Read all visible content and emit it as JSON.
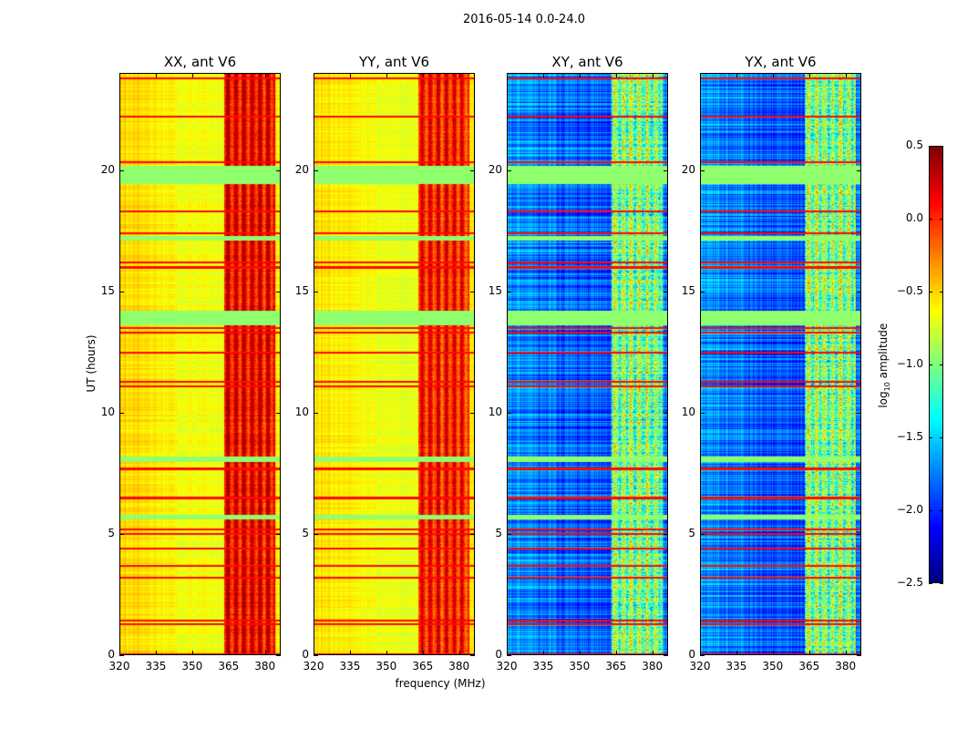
{
  "chart_data": {
    "type": "heatmap",
    "title": "2016-05-14 0.0-24.0",
    "xlabel": "frequency (MHz)",
    "ylabel": "UT (hours)",
    "xlim": [
      320,
      386.5
    ],
    "ylim": [
      0,
      24
    ],
    "xticks": [
      320,
      335,
      350,
      365,
      380
    ],
    "yticks": [
      0,
      5,
      10,
      15,
      20
    ],
    "colorbar": {
      "label_main": "log",
      "label_sub": "10",
      "label_rest": " amplitude",
      "range": [
        -2.5,
        0.5
      ],
      "ticks": [
        "0.5",
        "0.0",
        "−0.5",
        "−1.0",
        "−1.5",
        "−2.0",
        "−2.5"
      ],
      "tick_values": [
        0.5,
        0.0,
        -0.5,
        -1.0,
        -1.5,
        -2.0,
        -2.5
      ],
      "colormap": "jet"
    },
    "panels": [
      {
        "title": "XX, ant V6",
        "base_level": -0.6,
        "band_level": 0.15,
        "band_columns": [
          363,
          384
        ]
      },
      {
        "title": "YY, ant V6",
        "base_level": -0.62,
        "band_level": 0.05,
        "band_columns": [
          363,
          384
        ]
      },
      {
        "title": "XY, ant V6",
        "base_level": -1.8,
        "band_level": -1.0,
        "band_columns": [
          363,
          384
        ]
      },
      {
        "title": "YX, ant V6",
        "base_level": -1.8,
        "band_level": -1.0,
        "band_columns": [
          363,
          384
        ]
      }
    ],
    "flagged_time_ranges_hours": [
      [
        19.45,
        20.2
      ],
      [
        8.0,
        8.2
      ],
      [
        5.6,
        5.8
      ],
      [
        13.6,
        14.2
      ],
      [
        17.1,
        17.3
      ]
    ],
    "flag_level": -0.95,
    "bright_line_times_hours": [
      0.05,
      1.3,
      1.45,
      3.2,
      3.7,
      4.4,
      5.0,
      5.2,
      6.5,
      7.7,
      11.1,
      11.3,
      12.5,
      13.3,
      13.5,
      16.0,
      16.2,
      17.4,
      18.3,
      20.35,
      22.2,
      23.8
    ]
  }
}
